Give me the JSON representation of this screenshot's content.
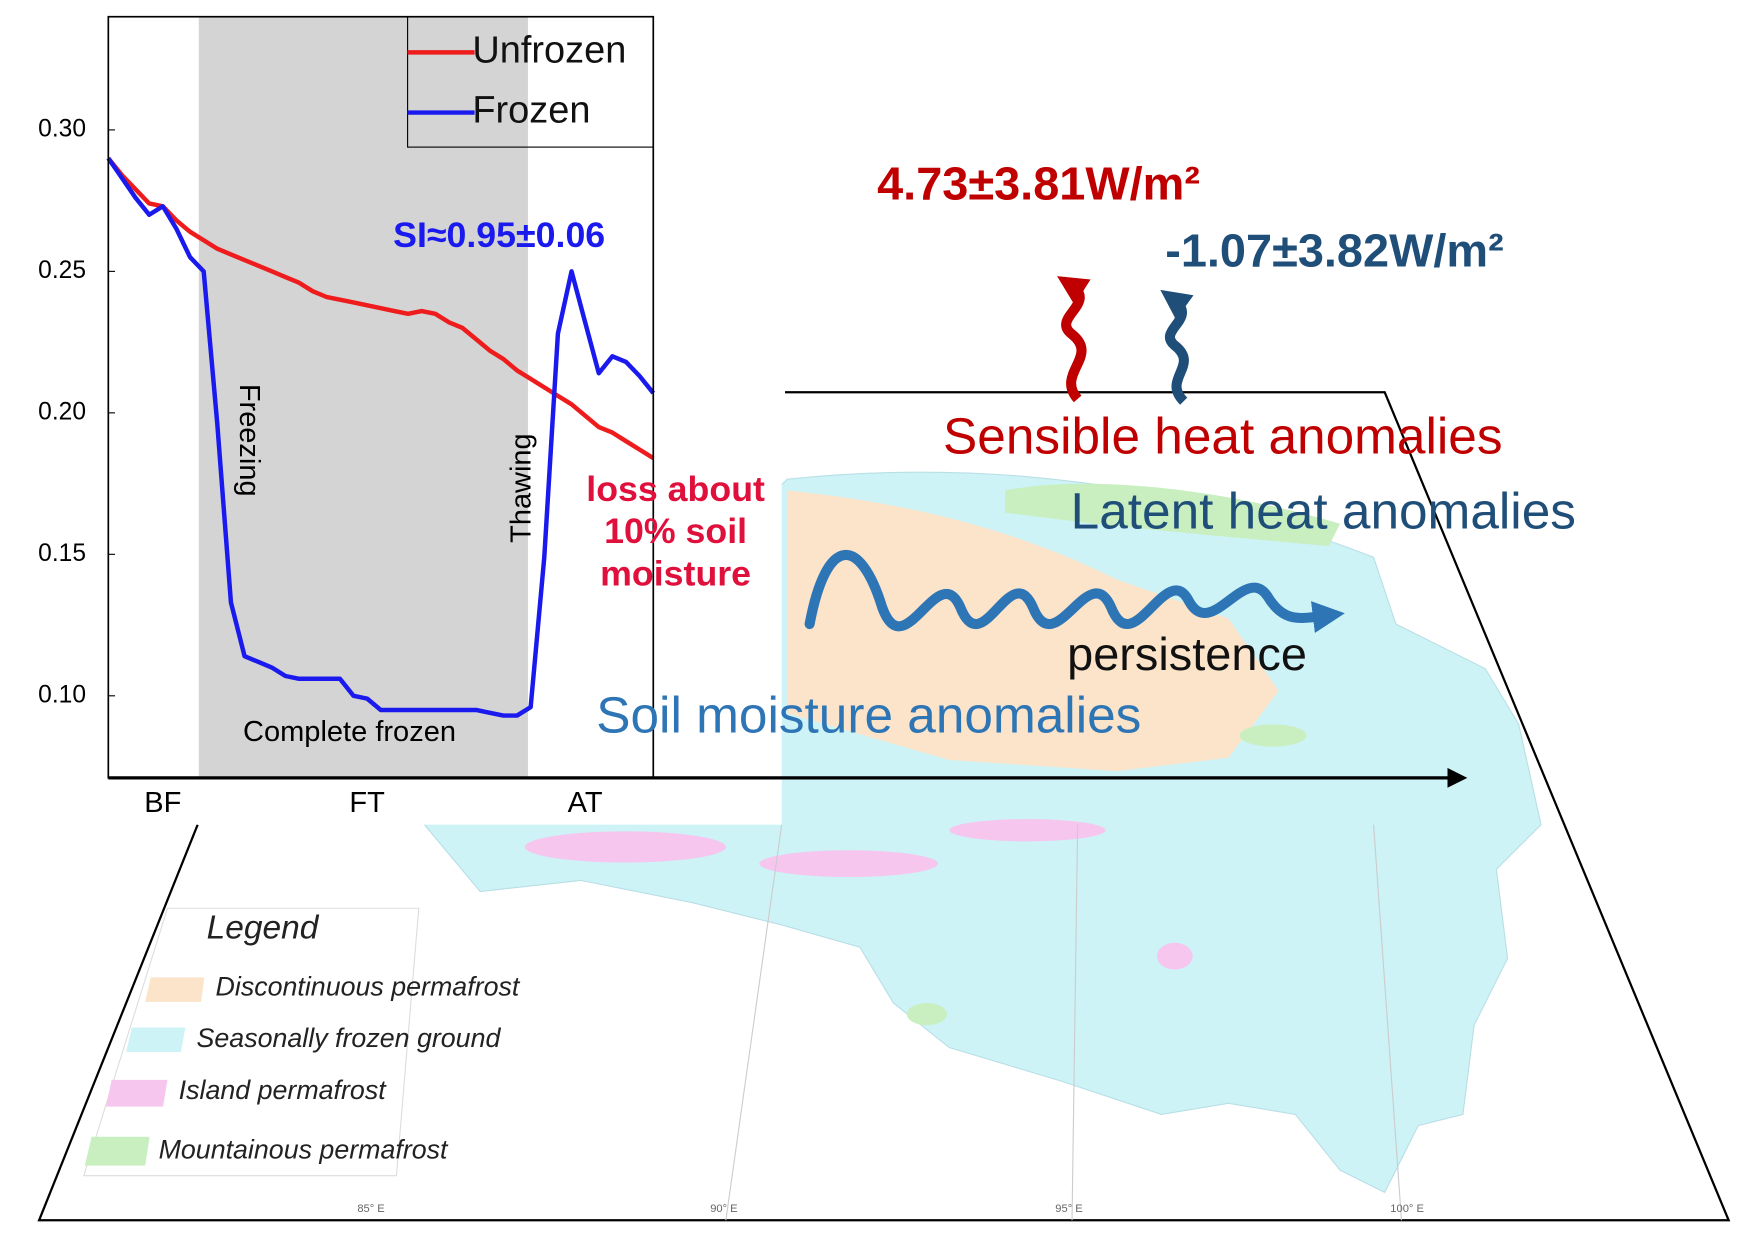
{
  "chart_data": {
    "type": "line",
    "categories": [
      null,
      null,
      null,
      null,
      "BF",
      null,
      null,
      null,
      null,
      null,
      null,
      null,
      null,
      null,
      null,
      null,
      null,
      null,
      null,
      "FT",
      null,
      null,
      null,
      null,
      null,
      null,
      null,
      null,
      null,
      null,
      null,
      null,
      null,
      null,
      null,
      "AT",
      null,
      null,
      null,
      null,
      null
    ],
    "series": [
      {
        "name": "Unfrozen",
        "color": "#ee1c1c",
        "values": [
          0.29,
          0.284,
          0.279,
          0.274,
          0.273,
          0.268,
          0.264,
          0.261,
          0.258,
          0.256,
          0.254,
          0.252,
          0.25,
          0.248,
          0.246,
          0.243,
          0.241,
          0.24,
          0.239,
          0.238,
          0.237,
          0.236,
          0.235,
          0.236,
          0.235,
          0.232,
          0.23,
          0.226,
          0.222,
          0.219,
          0.215,
          0.212,
          0.209,
          0.206,
          0.203,
          0.199,
          0.195,
          0.193,
          0.19,
          0.187,
          0.184
        ]
      },
      {
        "name": "Frozen",
        "color": "#1a1aee",
        "values": [
          0.29,
          0.283,
          0.276,
          0.27,
          0.273,
          0.265,
          0.255,
          0.25,
          0.196,
          0.133,
          0.114,
          0.112,
          0.11,
          0.107,
          0.106,
          0.106,
          0.106,
          0.106,
          0.1,
          0.099,
          0.095,
          0.095,
          0.095,
          0.095,
          0.095,
          0.095,
          0.095,
          0.095,
          0.094,
          0.093,
          0.093,
          0.096,
          0.149,
          0.228,
          0.25,
          0.232,
          0.214,
          0.22,
          0.218,
          0.213,
          0.207
        ]
      }
    ],
    "ylim": [
      0.071,
      0.34
    ],
    "yticks": [
      {
        "value": 0.1,
        "label": "0.10"
      },
      0.15,
      {
        "value": 0.2,
        "label": "0.20"
      },
      0.25,
      {
        "value": 0.3,
        "label": "0.30"
      }
    ],
    "legend": "upper right",
    "annotations": {
      "si": "SI≈0.95±0.06",
      "freezing": "Freezing",
      "thawing": "Thawing",
      "complete_frozen": "Complete frozen",
      "loss": [
        "loss about",
        "10% soil",
        "moisture"
      ]
    }
  },
  "flux": {
    "sensible_value": "4.73±3.81W/m²",
    "latent_value": "-1.07±3.82W/m²",
    "sensible_label": "Sensible heat anomalies",
    "latent_label": "Latent heat anomalies"
  },
  "persistence": "persistence",
  "soil_moisture": "Soil moisture anomalies",
  "map_legend": {
    "title": "Legend",
    "items": [
      "Discontinuous permafrost",
      "Seasonally frozen ground",
      "Island permafrost",
      "Mountainous permafrost"
    ]
  },
  "map_lon_labels": [
    "85° E",
    "90° E",
    "95° E",
    "100° E"
  ]
}
